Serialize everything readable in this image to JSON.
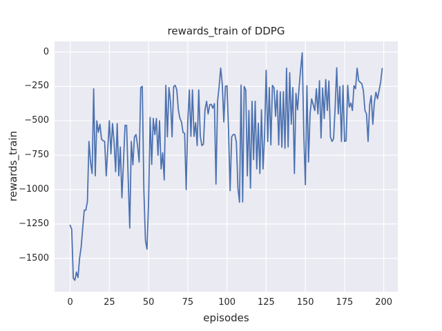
{
  "figure": {
    "title": "rewards_train of DDPG",
    "background_color": "#ffffff"
  },
  "axes": {
    "xlabel": "episodes",
    "ylabel": "rewards_train",
    "facecolor": "#eaeaf2",
    "grid_color": "#ffffff",
    "text_color": "#262626",
    "x_ticks": [
      0,
      25,
      50,
      75,
      100,
      125,
      150,
      175,
      200
    ],
    "y_ticks": [
      0,
      -250,
      -500,
      -750,
      -1000,
      -1250,
      -1500
    ]
  },
  "chart_data": {
    "type": "line",
    "title": "rewards_train of DDPG",
    "xlabel": "episodes",
    "ylabel": "rewards_train",
    "grid": true,
    "legend": null,
    "xlim": [
      -9.95,
      208.95
    ],
    "ylim": [
      -1742.75,
      77.75
    ],
    "x_range": [
      0,
      199
    ],
    "series": [
      {
        "name": "rewards_train",
        "color": "#4c72b0",
        "x_start": 0,
        "x_step": 1,
        "values": [
          -1260,
          -1290,
          -1645,
          -1660,
          -1600,
          -1640,
          -1500,
          -1420,
          -1280,
          -1150,
          -1150,
          -1085,
          -650,
          -800,
          -883,
          -267,
          -900,
          -500,
          -583,
          -525,
          -633,
          -645,
          -650,
          -900,
          -700,
          -500,
          -740,
          -520,
          -650,
          -870,
          -520,
          -900,
          -690,
          -1060,
          -800,
          -533,
          -533,
          -917,
          -1280,
          -650,
          -820,
          -617,
          -600,
          -683,
          -800,
          -258,
          -250,
          -1000,
          -1370,
          -1433,
          -1100,
          -475,
          -817,
          -483,
          -600,
          -483,
          -750,
          -500,
          -850,
          -733,
          -930,
          -242,
          -617,
          -258,
          -360,
          -617,
          -250,
          -242,
          -275,
          -420,
          -483,
          -508,
          -585,
          -590,
          -1000,
          -508,
          -275,
          -613,
          -275,
          -613,
          -513,
          -680,
          -275,
          -613,
          -680,
          -670,
          -417,
          -358,
          -450,
          -383,
          -380,
          -408,
          -375,
          -960,
          -360,
          -250,
          -117,
          -230,
          -508,
          -250,
          -245,
          -567,
          -1008,
          -617,
          -600,
          -600,
          -655,
          -992,
          -1092,
          -240,
          -1090,
          -250,
          -275,
          -900,
          -425,
          -990,
          -358,
          -783,
          -358,
          -850,
          -517,
          -883,
          -420,
          -850,
          -600,
          -133,
          -650,
          -258,
          -675,
          -242,
          -260,
          -467,
          -280,
          -675,
          -290,
          -692,
          -288,
          -700,
          -117,
          -690,
          -150,
          -525,
          -258,
          -883,
          -300,
          -420,
          -258,
          -120,
          -5,
          -600,
          -965,
          -245,
          -800,
          -450,
          -340,
          -383,
          -425,
          -267,
          -450,
          -208,
          -625,
          -260,
          -483,
          -200,
          -425,
          -210,
          -617,
          -650,
          -630,
          -400,
          -115,
          -450,
          -250,
          -650,
          -242,
          -650,
          -645,
          -242,
          -400,
          -370,
          -425,
          -245,
          -267,
          -117,
          -208,
          -220,
          -230,
          -280,
          -425,
          -450,
          -650,
          -383,
          -317,
          -525,
          -367,
          -292,
          -340,
          -280,
          -220,
          -120
        ]
      }
    ]
  }
}
